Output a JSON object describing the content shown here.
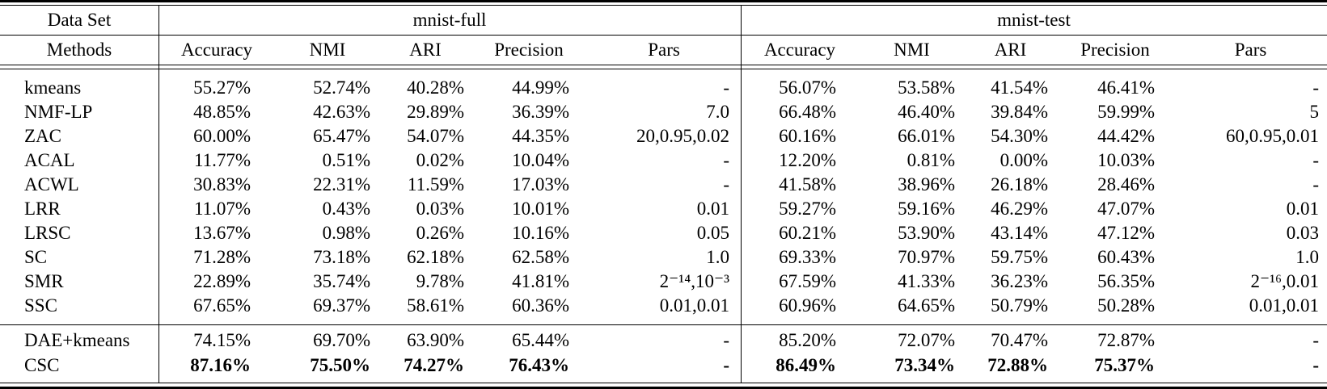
{
  "table": {
    "corner": {
      "row1": "Data Set",
      "row2": "Methods"
    },
    "groups": [
      {
        "label": "mnist-full"
      },
      {
        "label": "mnist-test"
      }
    ],
    "metric_headers": [
      "Accuracy",
      "NMI",
      "ARI",
      "Precision",
      "Pars"
    ],
    "rows": [
      {
        "method": "kmeans",
        "full": [
          "55.27%",
          "52.74%",
          "40.28%",
          "44.99%",
          "-"
        ],
        "test": [
          "56.07%",
          "53.58%",
          "41.54%",
          "46.41%",
          "-"
        ]
      },
      {
        "method": "NMF-LP",
        "full": [
          "48.85%",
          "42.63%",
          "29.89%",
          "36.39%",
          "7.0"
        ],
        "test": [
          "66.48%",
          "46.40%",
          "39.84%",
          "59.99%",
          "5"
        ]
      },
      {
        "method": "ZAC",
        "full": [
          "60.00%",
          "65.47%",
          "54.07%",
          "44.35%",
          "20,0.95,0.02"
        ],
        "test": [
          "60.16%",
          "66.01%",
          "54.30%",
          "44.42%",
          "60,0.95,0.01"
        ]
      },
      {
        "method": "ACAL",
        "full": [
          "11.77%",
          "0.51%",
          "0.02%",
          "10.04%",
          "-"
        ],
        "test": [
          "12.20%",
          "0.81%",
          "0.00%",
          "10.03%",
          "-"
        ]
      },
      {
        "method": "ACWL",
        "full": [
          "30.83%",
          "22.31%",
          "11.59%",
          "17.03%",
          "-"
        ],
        "test": [
          "41.58%",
          "38.96%",
          "26.18%",
          "28.46%",
          "-"
        ]
      },
      {
        "method": "LRR",
        "full": [
          "11.07%",
          "0.43%",
          "0.03%",
          "10.01%",
          "0.01"
        ],
        "test": [
          "59.27%",
          "59.16%",
          "46.29%",
          "47.07%",
          "0.01"
        ]
      },
      {
        "method": "LRSC",
        "full": [
          "13.67%",
          "0.98%",
          "0.26%",
          "10.16%",
          "0.05"
        ],
        "test": [
          "60.21%",
          "53.90%",
          "43.14%",
          "47.12%",
          "0.03"
        ]
      },
      {
        "method": "SC",
        "full": [
          "71.28%",
          "73.18%",
          "62.18%",
          "62.58%",
          "1.0"
        ],
        "test": [
          "69.33%",
          "70.97%",
          "59.75%",
          "60.43%",
          "1.0"
        ]
      },
      {
        "method": "SMR",
        "full": [
          "22.89%",
          "35.74%",
          "9.78%",
          "41.81%",
          "2⁻¹⁴,10⁻³"
        ],
        "test": [
          "67.59%",
          "41.33%",
          "36.23%",
          "56.35%",
          "2⁻¹⁶,0.01"
        ]
      },
      {
        "method": "SSC",
        "full": [
          "67.65%",
          "69.37%",
          "58.61%",
          "60.36%",
          "0.01,0.01"
        ],
        "test": [
          "60.96%",
          "64.65%",
          "50.79%",
          "50.28%",
          "0.01,0.01"
        ]
      }
    ],
    "footer_rows": [
      {
        "method": "DAE+kmeans",
        "full": [
          "74.15%",
          "69.70%",
          "63.90%",
          "65.44%",
          "-"
        ],
        "test": [
          "85.20%",
          "72.07%",
          "70.47%",
          "72.87%",
          "-"
        ],
        "bold_values": false
      },
      {
        "method": "CSC",
        "full": [
          "87.16%",
          "75.50%",
          "74.27%",
          "76.43%",
          "-"
        ],
        "test": [
          "86.49%",
          "73.34%",
          "72.88%",
          "75.37%",
          "-"
        ],
        "bold_values": true
      }
    ]
  }
}
